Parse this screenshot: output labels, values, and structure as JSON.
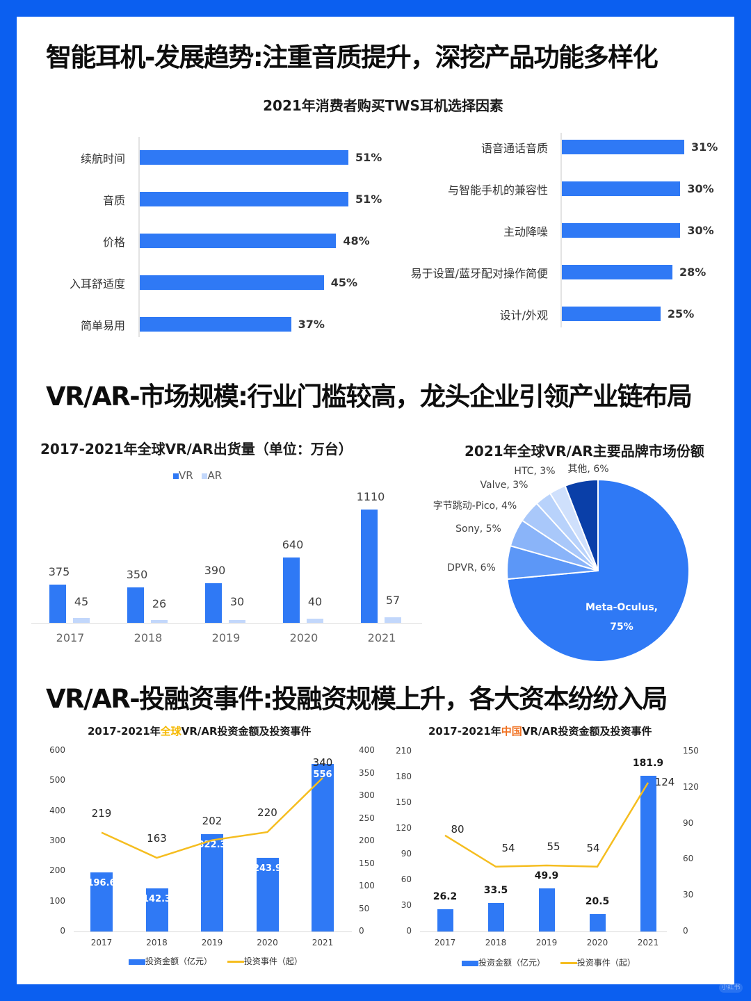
{
  "colors": {
    "frame": "#0b5ff0",
    "bar_primary": "#2f79f5",
    "ar_bar": "#c2d7fb",
    "line": "#f5bd1f",
    "highlight_global": "#f5b800",
    "highlight_china": "#f07020"
  },
  "sections": [
    {
      "title": "智能耳机-发展趋势:注重音质提升，深挖产品功能多样化"
    },
    {
      "title": "VR/AR-市场规模:行业门槛较高，龙头企业引领产业链布局"
    },
    {
      "title": "VR/AR-投融资事件:投融资规模上升，各大资本纷纷入局"
    }
  ],
  "tws": {
    "title": "2021年消费者购买TWS耳机选择因素"
  },
  "shipments": {
    "title": "2017-2021年全球VR/AR出货量（单位：万台）",
    "legend_vr": "VR",
    "legend_ar": "AR"
  },
  "pie": {
    "title": "2021年全球VR/AR主要品牌市场份额"
  },
  "global_invest": {
    "title_prefix": "2017-2021年",
    "title_highlight": "全球",
    "title_suffix": "VR/AR投资金额及投资事件",
    "legend_bar": "投资金额（亿元）",
    "legend_line": "投资事件（起）"
  },
  "china_invest": {
    "title_prefix": "2017-2021年",
    "title_highlight": "中国",
    "title_suffix": "VR/AR投资金额及投资事件",
    "legend_bar": "投资金额（亿元）",
    "legend_line": "投资事件（起）"
  },
  "chart_data": [
    {
      "type": "bar",
      "orientation": "horizontal",
      "title": "2021年消费者购买TWS耳机选择因素",
      "categories": [
        "续航时间",
        "音质",
        "价格",
        "入耳舒适度",
        "简单易用",
        "语音通话音质",
        "与智能手机的兼容性",
        "主动降噪",
        "易于设置/蓝牙配对操作简便",
        "设计/外观"
      ],
      "values": [
        51,
        51,
        48,
        45,
        37,
        31,
        30,
        30,
        28,
        25
      ],
      "value_labels": [
        "51%",
        "51%",
        "48%",
        "45%",
        "37%",
        "31%",
        "30%",
        "30%",
        "28%",
        "25%"
      ],
      "unit": "%"
    },
    {
      "type": "bar",
      "title": "2017-2021年全球VR/AR出货量（单位：万台）",
      "categories": [
        "2017",
        "2018",
        "2019",
        "2020",
        "2021"
      ],
      "series": [
        {
          "name": "VR",
          "values": [
            375,
            350,
            390,
            640,
            1110
          ]
        },
        {
          "name": "AR",
          "values": [
            45,
            26,
            30,
            40,
            57
          ]
        }
      ],
      "legend_position": "top"
    },
    {
      "type": "pie",
      "title": "2021年全球VR/AR主要品牌市场份额",
      "labels": [
        "Meta-Oculus",
        "DPVR",
        "Sony",
        "字节跳动-Pico",
        "Valve",
        "HTC",
        "其他"
      ],
      "values": [
        75,
        6,
        5,
        4,
        3,
        3,
        6
      ],
      "slice_labels": [
        "Meta-Oculus,\n75%",
        "DPVR, 6%",
        "Sony, 5%",
        "字节跳动-Pico, 4%",
        "Valve, 3%",
        "HTC, 3%",
        "其他, 6%"
      ]
    },
    {
      "type": "bar+line",
      "title": "2017-2021年全球VR/AR投资金额及投资事件",
      "categories": [
        "2017",
        "2018",
        "2019",
        "2020",
        "2021"
      ],
      "series": [
        {
          "name": "投资金额（亿元）",
          "type": "bar",
          "axis": "left",
          "values": [
            196.6,
            142.3,
            322.3,
            243.9,
            556
          ]
        },
        {
          "name": "投资事件（起）",
          "type": "line",
          "axis": "right",
          "values": [
            219,
            163,
            202,
            220,
            340
          ]
        }
      ],
      "ylim_left": [
        0,
        600
      ],
      "yticks_left": [
        "0",
        "100",
        "200",
        "300",
        "400",
        "500",
        "600"
      ],
      "ylim_right": [
        0,
        400
      ],
      "yticks_right": [
        "0",
        "50",
        "100",
        "150",
        "200",
        "250",
        "300",
        "350",
        "400"
      ],
      "legend_position": "bottom"
    },
    {
      "type": "bar+line",
      "title": "2017-2021年中国VR/AR投资金额及投资事件",
      "categories": [
        "2017",
        "2018",
        "2019",
        "2020",
        "2021"
      ],
      "series": [
        {
          "name": "投资金额（亿元）",
          "type": "bar",
          "axis": "left",
          "values": [
            26.2,
            33.5,
            49.9,
            20.5,
            181.9
          ]
        },
        {
          "name": "投资事件（起）",
          "type": "line",
          "axis": "right",
          "values": [
            80,
            54,
            55,
            54,
            124
          ]
        }
      ],
      "ylim_left": [
        0,
        210
      ],
      "yticks_left": [
        "0",
        "30",
        "60",
        "90",
        "120",
        "150",
        "180",
        "210"
      ],
      "ylim_right": [
        0,
        150
      ],
      "yticks_right": [
        "0",
        "30",
        "60",
        "90",
        "120",
        "150"
      ],
      "legend_position": "bottom"
    }
  ],
  "badge": "小红书"
}
